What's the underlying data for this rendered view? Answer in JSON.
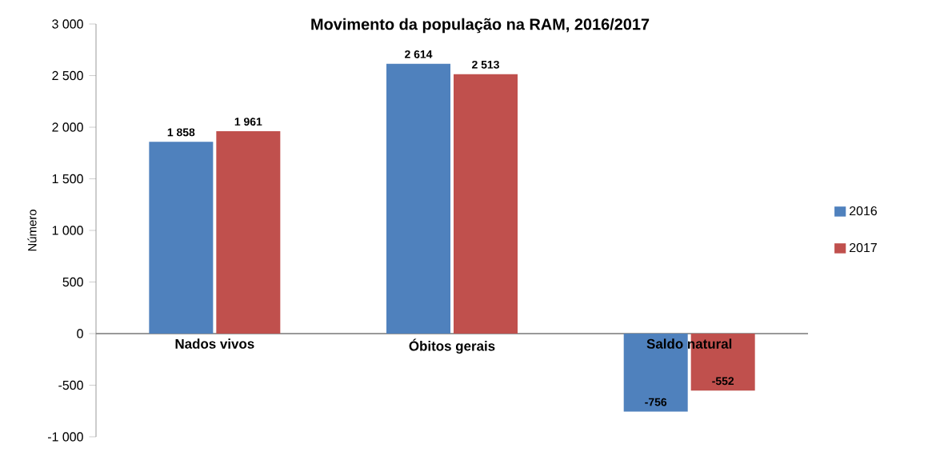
{
  "chart_data": {
    "type": "bar",
    "title": "Movimento da população  na RAM, 2016/2017",
    "ylabel": "Número",
    "categories": [
      "Nados vivos",
      "Óbitos gerais",
      "Saldo natural"
    ],
    "series": [
      {
        "name": "2016",
        "color": "#4f81bd",
        "values": [
          1858,
          2614,
          -756
        ],
        "value_labels": [
          "1 858",
          "2 614",
          "-756"
        ]
      },
      {
        "name": "2017",
        "color": "#c0504d",
        "values": [
          1961,
          2513,
          -552
        ],
        "value_labels": [
          "1 961",
          "2 513",
          "-552"
        ]
      }
    ],
    "ylim": [
      -1000,
      3000
    ],
    "yticks": [
      {
        "value": -1000,
        "label": "-1 000"
      },
      -500,
      0,
      500,
      {
        "value": 1000,
        "label": "1 000"
      },
      {
        "value": 1500,
        "label": "1 500"
      },
      {
        "value": 2000,
        "label": "2 000"
      },
      {
        "value": 2500,
        "label": "2 500"
      },
      {
        "value": 3000,
        "label": "3 000"
      }
    ],
    "grid": false,
    "legend": "right"
  }
}
